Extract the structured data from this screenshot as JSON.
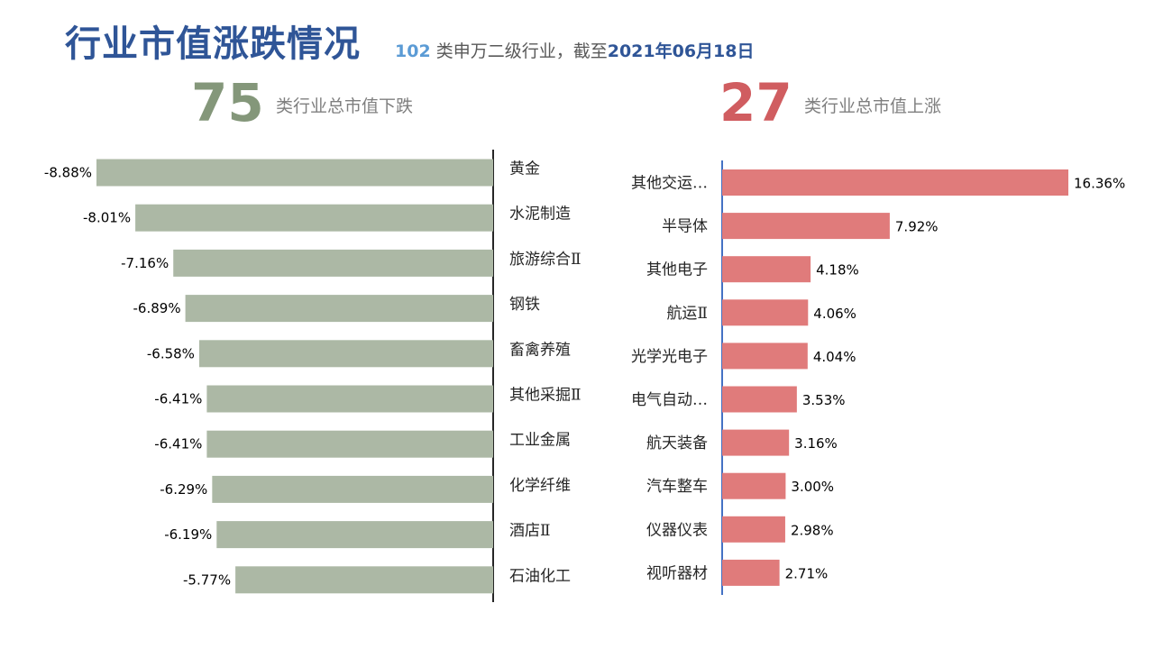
{
  "header": {
    "title": "行业市值涨跌情况",
    "subtitle_count": "102",
    "subtitle_text": "类申万二级行业，截至",
    "subtitle_date": "2021年06月18日"
  },
  "summary": {
    "down_count": "75",
    "down_caption": "类行业总市值下跌",
    "up_count": "27",
    "up_caption": "类行业总市值上涨"
  },
  "colors": {
    "down": "#acb8a5",
    "up": "#e07b7b",
    "axis_left": "#262626",
    "axis_right": "#4472c4"
  },
  "chart_data": [
    {
      "type": "bar",
      "orientation": "horizontal",
      "categories": [
        "黄金",
        "水泥制造",
        "旅游综合Ⅱ",
        "钢铁",
        "畜禽养殖",
        "其他采掘Ⅱ",
        "工业金属",
        "化学纤维",
        "酒店Ⅱ",
        "石油化工"
      ],
      "values": [
        -8.88,
        -8.01,
        -7.16,
        -6.89,
        -6.58,
        -6.41,
        -6.41,
        -6.29,
        -6.19,
        -5.77
      ],
      "value_labels": [
        "-8.88%",
        "-8.01%",
        "-7.16%",
        "-6.89%",
        "-6.58%",
        "-6.41%",
        "-6.41%",
        "-6.29%",
        "-6.19%",
        "-5.77%"
      ],
      "unit": "%"
    },
    {
      "type": "bar",
      "orientation": "horizontal",
      "categories": [
        "其他交运…",
        "半导体",
        "其他电子",
        "航运Ⅱ",
        "光学光电子",
        "电气自动…",
        "航天装备",
        "汽车整车",
        "仪器仪表",
        "视听器材"
      ],
      "values": [
        16.36,
        7.92,
        4.18,
        4.06,
        4.04,
        3.53,
        3.16,
        3.0,
        2.98,
        2.71
      ],
      "value_labels": [
        "16.36%",
        "7.92%",
        "4.18%",
        "4.06%",
        "4.04%",
        "3.53%",
        "3.16%",
        "3.00%",
        "2.98%",
        "2.71%"
      ],
      "unit": "%"
    }
  ]
}
